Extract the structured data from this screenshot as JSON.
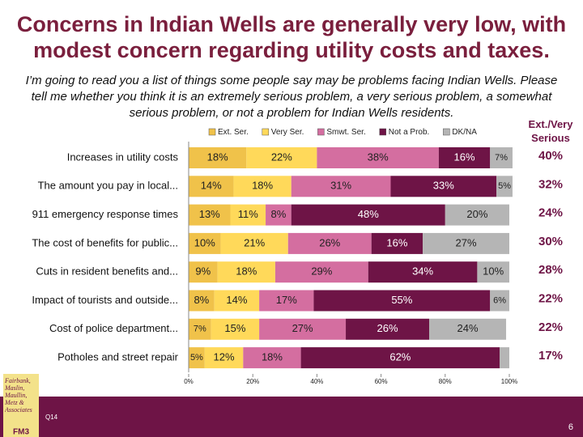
{
  "title": "Concerns in Indian Wells are generally very low, with modest concern regarding utility costs and taxes.",
  "subtitle": "I’m going to read you a list of things some people say may be problems facing Indian Wells. Please tell me whether you think it is an extremely serious problem, a very serious problem, a somewhat serious problem, or not a problem for Indian Wells residents.",
  "chart_data": {
    "type": "bar",
    "orientation": "horizontal",
    "stacked": true,
    "categories": [
      "Increases in utility costs",
      "The amount you pay in local...",
      "911 emergency response times",
      "The cost of benefits for public...",
      "Cuts in resident benefits and...",
      "Impact of tourists and outside...",
      "Cost of police department...",
      "Potholes and street repair"
    ],
    "series": [
      {
        "name": "Ext. Ser.",
        "color": "#f0c24a",
        "values": [
          18,
          14,
          13,
          10,
          9,
          8,
          7,
          5
        ],
        "value_labels": [
          "18%",
          "14%",
          "13%",
          "10%",
          "9%",
          "8%",
          "7%",
          "5%"
        ]
      },
      {
        "name": "Very Ser.",
        "color": "#ffd95a",
        "values": [
          22,
          18,
          11,
          21,
          18,
          14,
          15,
          12
        ],
        "value_labels": [
          "22%",
          "18%",
          "11%",
          "21%",
          "18%",
          "14%",
          "15%",
          "12%"
        ]
      },
      {
        "name": "Smwt. Ser.",
        "color": "#d46ea0",
        "values": [
          38,
          31,
          8,
          26,
          29,
          17,
          27,
          18
        ],
        "value_labels": [
          "38%",
          "31%",
          "8%",
          "26%",
          "29%",
          "17%",
          "27%",
          "18%"
        ]
      },
      {
        "name": "Not a Prob.",
        "color": "#6e1446",
        "values": [
          16,
          33,
          48,
          16,
          34,
          55,
          26,
          62
        ],
        "value_labels": [
          "16%",
          "33%",
          "48%",
          "16%",
          "34%",
          "55%",
          "26%",
          "62%"
        ]
      },
      {
        "name": "DK/NA",
        "color": "#b5b5b5",
        "values": [
          7,
          5,
          20,
          27,
          10,
          6,
          24,
          3
        ],
        "value_labels": [
          "7%",
          "5%",
          "20%",
          "27%",
          "10%",
          "6%",
          "24%",
          null
        ]
      }
    ],
    "xlim": [
      0,
      100
    ],
    "xticks": [
      {
        "value": 0,
        "label": "0%"
      },
      {
        "value": 20,
        "label": "20%"
      },
      {
        "value": 40,
        "label": "40%"
      },
      {
        "value": 60,
        "label": "60%"
      },
      {
        "value": 80,
        "label": "80%"
      },
      {
        "value": 100,
        "label": "100%"
      }
    ],
    "legend": "top",
    "extra_column": {
      "title": "Ext./Very Serious",
      "values": [
        40,
        32,
        24,
        30,
        28,
        22,
        22,
        17
      ],
      "value_labels": [
        "40%",
        "32%",
        "24%",
        "30%",
        "28%",
        "22%",
        "22%",
        "17%"
      ]
    }
  },
  "footer": {
    "question": "Q14",
    "page": "6",
    "logo": {
      "text": "Fairbank, Maslin, Maullin, Metz & Associates",
      "abbr": "FM3"
    }
  }
}
